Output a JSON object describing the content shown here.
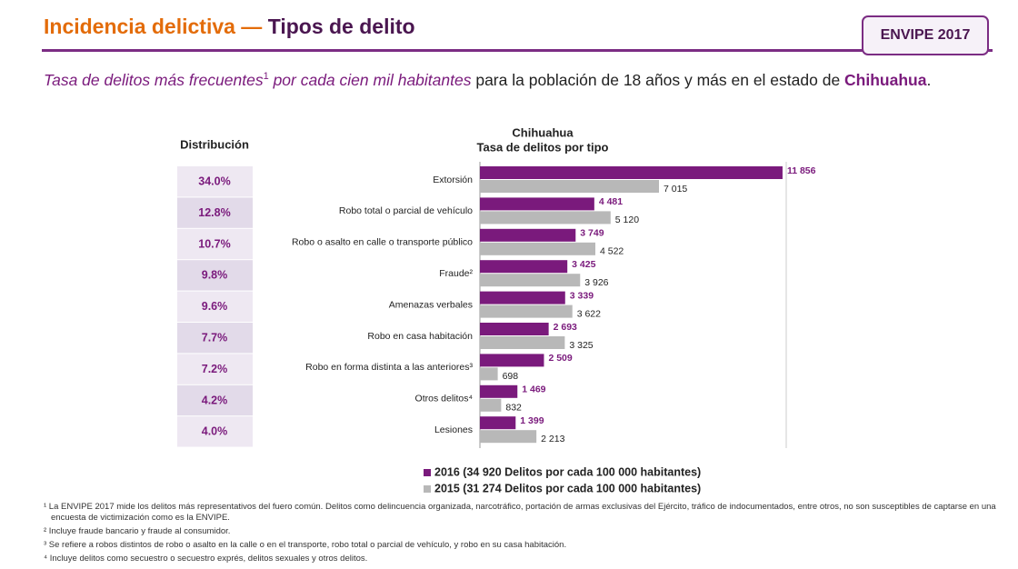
{
  "header": {
    "title_part1": "Incidencia delictiva — ",
    "title_part2": "Tipos de delito",
    "badge": "ENVIPE 2017"
  },
  "subtitle": [
    {
      "text": "Tasa de delitos más frecuentes",
      "style": "em"
    },
    {
      "text": "1",
      "style": "sup"
    },
    {
      "text": " por cada cien mil habitantes",
      "style": "em"
    },
    {
      "text": " para la población de 18 años y más en el estado de ",
      "style": "plain"
    },
    {
      "text": "Chihuahua",
      "style": "strong"
    },
    {
      "text": ".",
      "style": "plain"
    }
  ],
  "distribution": {
    "title": "Distribución",
    "rows": [
      "34.0%",
      "12.8%",
      "10.7%",
      "9.8%",
      "9.6%",
      "7.7%",
      "7.2%",
      "4.2%",
      "4.0%"
    ]
  },
  "chart_data": {
    "type": "bar",
    "orientation": "horizontal",
    "title": "Chihuahua",
    "subtitle": "Tasa de delitos por tipo",
    "categories": [
      "Extorsión",
      "Robo total o parcial de vehículo",
      "Robo o asalto en calle o transporte público",
      "Fraude²",
      "Amenazas verbales",
      "Robo en casa habitación",
      "Robo en forma distinta a las anteriores³",
      "Otros delitos⁴",
      "Lesiones"
    ],
    "series": [
      {
        "name": "2016 (34 920 Delitos por cada 100 000 habitantes)",
        "color": "#7a1a7c",
        "values": [
          11856,
          4481,
          3749,
          3425,
          3339,
          2693,
          2509,
          1469,
          1399
        ],
        "value_labels": [
          "11 856",
          "4 481",
          "3 749",
          "3 425",
          "3 339",
          "2 693",
          "2 509",
          "1 469",
          "1 399"
        ]
      },
      {
        "name": "2015 (31 274 Delitos por cada 100 000 habitantes)",
        "color": "#b8b8b8",
        "values": [
          7015,
          5120,
          4522,
          3926,
          3622,
          3325,
          698,
          832,
          2213
        ],
        "value_labels": [
          "7 015",
          "5 120",
          "4 522",
          "3 926",
          "3 622",
          "3 325",
          "698",
          "832",
          "2 213"
        ]
      }
    ],
    "xlim": [
      0,
      12000
    ]
  },
  "footnotes": [
    "¹ La ENVIPE 2017 mide los delitos más representativos del fuero común. Delitos como delincuencia organizada, narcotráfico, portación de armas exclusivas del Ejército, tráfico de indocumentados, entre otros, no son susceptibles de captarse en una encuesta de victimización como es la ENVIPE.",
    "² Incluye fraude bancario y fraude al consumidor.",
    "³ Se refiere a robos distintos de robo o asalto en la calle o en el transporte, robo total o parcial de vehículo, y robo en su casa habitación.",
    "⁴ Incluye delitos como secuestro o secuestro exprés, delitos sexuales y otros delitos."
  ]
}
